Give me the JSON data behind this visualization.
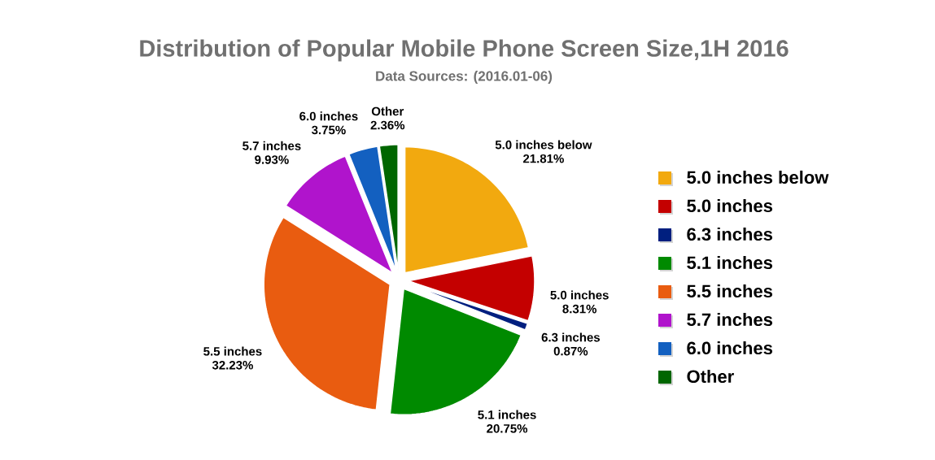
{
  "chart_data": {
    "type": "pie",
    "title": "Distribution of Popular Mobile Phone Screen Size,1H 2016",
    "subtitle": "Data Sources: (2016.01-06)",
    "categories": [
      "5.0 inches below",
      "5.0 inches",
      "6.3 inches",
      "5.1 inches",
      "5.5 inches",
      "5.7 inches",
      "6.0 inches",
      "Other"
    ],
    "values": [
      21.81,
      8.31,
      0.87,
      20.75,
      32.23,
      9.93,
      3.75,
      2.36
    ],
    "value_labels": [
      "21.81%",
      "8.31%",
      "0.87%",
      "20.75%",
      "32.23%",
      "9.93%",
      "3.75%",
      "2.36%"
    ],
    "colors": [
      "#f2a90f",
      "#c40000",
      "#001f7f",
      "#008a00",
      "#e95c10",
      "#b014cc",
      "#1360c0",
      "#006600"
    ],
    "legend": "right"
  }
}
